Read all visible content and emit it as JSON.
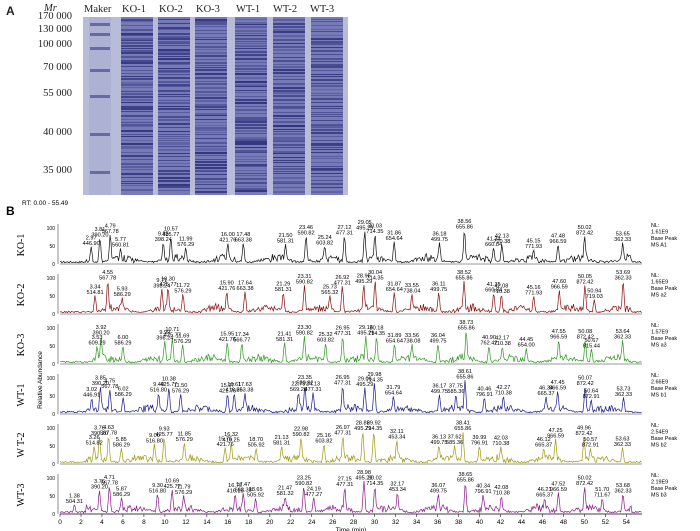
{
  "panel_a": {
    "letter": "A",
    "mw_unit_label": "Mr",
    "mw_markers": [
      "170 000",
      "130 000",
      "100 000",
      "70 000",
      "55 000",
      "40 000",
      "35 000"
    ],
    "lanes": [
      "Maker",
      "KO-1",
      "KO-2",
      "KO-3",
      "WT-1",
      "WT-2",
      "WT-3"
    ]
  },
  "panel_b": {
    "letter": "B",
    "range_label": "RT: 0.00 - 55.49",
    "y_axis_label": "Relative Abundance",
    "x_axis_label": "Time (min)",
    "x_ticks": [
      0,
      2,
      4,
      6,
      8,
      10,
      12,
      14,
      16,
      18,
      20,
      22,
      24,
      26,
      28,
      30,
      32,
      34,
      36,
      38,
      40,
      42,
      44,
      46,
      48,
      50,
      52,
      54
    ],
    "colors": {
      "KO-1": "#111111",
      "KO-2": "#8a1010",
      "KO-3": "#2e9a20",
      "WT-1": "#1a1a8a",
      "WT-2": "#a39a10",
      "WT-3": "#8a1a8a"
    },
    "traces": [
      {
        "label": "KO-1",
        "info": [
          "NL:",
          "1.61E9",
          "Base Peak",
          "MS A1"
        ],
        "peaks": [
          {
            "rt": "3.81",
            "mz": "390.20",
            "h": 0.72
          },
          {
            "rt": "4.79",
            "mz": "567.78",
            "h": 0.82
          },
          {
            "rt": "2.97",
            "mz": "446.90",
            "h": 0.48
          },
          {
            "rt": "5.77",
            "mz": "560.81",
            "h": 0.44
          },
          {
            "rt": "9.85",
            "mz": "398.24",
            "h": 0.6
          },
          {
            "rt": "10.57",
            "mz": "425.77",
            "h": 0.74
          },
          {
            "rt": "11.99",
            "mz": "576.29",
            "h": 0.46
          },
          {
            "rt": "16.00",
            "mz": "421.76",
            "h": 0.58
          },
          {
            "rt": "17.48",
            "mz": "663.38",
            "h": 0.58
          },
          {
            "rt": "21.50",
            "mz": "581.31",
            "h": 0.56
          },
          {
            "rt": "23.46",
            "mz": "590.82",
            "h": 0.78
          },
          {
            "rt": "25.24",
            "mz": "603.82",
            "h": 0.5
          },
          {
            "rt": "27.12",
            "mz": "477.31",
            "h": 0.78
          },
          {
            "rt": "29.05",
            "mz": "495.29",
            "h": 0.92
          },
          {
            "rt": "30.03",
            "mz": "714.35",
            "h": 0.82
          },
          {
            "rt": "31.86",
            "mz": "654.64",
            "h": 0.62
          },
          {
            "rt": "36.18",
            "mz": "499.75",
            "h": 0.6
          },
          {
            "rt": "38.56",
            "mz": "655.86",
            "h": 0.94
          },
          {
            "rt": "41.34",
            "mz": "660.84",
            "h": 0.46
          },
          {
            "rt": "42.13",
            "mz": "710.38",
            "h": 0.54
          },
          {
            "rt": "45.15",
            "mz": "771.93",
            "h": 0.4
          },
          {
            "rt": "47.48",
            "mz": "966.59",
            "h": 0.54
          },
          {
            "rt": "50.02",
            "mz": "872.42",
            "h": 0.78
          },
          {
            "rt": "53.65",
            "mz": "362.33",
            "h": 0.6
          }
        ]
      },
      {
        "label": "KO-2",
        "info": [
          "NL:",
          "1.65E9",
          "Base Peak",
          "MS a2"
        ],
        "peaks": [
          {
            "rt": "4.55",
            "mz": "567.78",
            "h": 0.92
          },
          {
            "rt": "3.34",
            "mz": "514.81",
            "h": 0.52
          },
          {
            "rt": "5.93",
            "mz": "586.29",
            "h": 0.46
          },
          {
            "rt": "9.71",
            "mz": "398.24",
            "h": 0.7
          },
          {
            "rt": "10.30",
            "mz": "425.77",
            "h": 0.74
          },
          {
            "rt": "11.72",
            "mz": "576.29",
            "h": 0.56
          },
          {
            "rt": "15.90",
            "mz": "421.76",
            "h": 0.62
          },
          {
            "rt": "17.64",
            "mz": "663.38",
            "h": 0.62
          },
          {
            "rt": "21.29",
            "mz": "581.31",
            "h": 0.6
          },
          {
            "rt": "23.31",
            "mz": "590.82",
            "h": 0.8
          },
          {
            "rt": "25.73",
            "mz": "565.32",
            "h": 0.52
          },
          {
            "rt": "26.92",
            "mz": "477.31",
            "h": 0.78
          },
          {
            "rt": "28.96",
            "mz": "495.29",
            "h": 0.82
          },
          {
            "rt": "30.04",
            "mz": "714.35",
            "h": 0.92
          },
          {
            "rt": "31.87",
            "mz": "654.64",
            "h": 0.6
          },
          {
            "rt": "33.55",
            "mz": "738.04",
            "h": 0.56
          },
          {
            "rt": "36.11",
            "mz": "499.75",
            "h": 0.6
          },
          {
            "rt": "38.52",
            "mz": "655.86",
            "h": 0.92
          },
          {
            "rt": "41.35",
            "mz": "660.84",
            "h": 0.58
          },
          {
            "rt": "42.08",
            "mz": "710.38",
            "h": 0.54
          },
          {
            "rt": "45.16",
            "mz": "771.93",
            "h": 0.5
          },
          {
            "rt": "47.60",
            "mz": "966.59",
            "h": 0.66
          },
          {
            "rt": "50.05",
            "mz": "872.42",
            "h": 0.8
          },
          {
            "rt": "50.94",
            "mz": "719.03",
            "h": 0.4
          },
          {
            "rt": "53.69",
            "mz": "362.33",
            "h": 0.92
          }
        ]
      },
      {
        "label": "KO-3",
        "info": [
          "NL:",
          "1.57E9",
          "Base Peak",
          "MS a3"
        ],
        "peaks": [
          {
            "rt": "3.92",
            "mz": "390.20",
            "h": 0.78
          },
          {
            "rt": "3.53",
            "mz": "609.29",
            "h": 0.5
          },
          {
            "rt": "6.00",
            "mz": "586.29",
            "h": 0.5
          },
          {
            "rt": "9.99",
            "mz": "398.24",
            "h": 0.64
          },
          {
            "rt": "10.71",
            "mz": "425.77",
            "h": 0.72
          },
          {
            "rt": "11.69",
            "mz": "576.29",
            "h": 0.54
          },
          {
            "rt": "15.95",
            "mz": "421.76",
            "h": 0.6
          },
          {
            "rt": "17.34",
            "mz": "566.77",
            "h": 0.58
          },
          {
            "rt": "21.41",
            "mz": "581.31",
            "h": 0.6
          },
          {
            "rt": "23.30",
            "mz": "590.82",
            "h": 0.78
          },
          {
            "rt": "25.32",
            "mz": "603.82",
            "h": 0.58
          },
          {
            "rt": "26.95",
            "mz": "477.31",
            "h": 0.76
          },
          {
            "rt": "29.16",
            "mz": "495.29",
            "h": 0.78
          },
          {
            "rt": "30.18",
            "mz": "714.35",
            "h": 0.76
          },
          {
            "rt": "31.89",
            "mz": "654.64",
            "h": 0.56
          },
          {
            "rt": "33.56",
            "mz": "738.08",
            "h": 0.56
          },
          {
            "rt": "36.04",
            "mz": "499.75",
            "h": 0.56
          },
          {
            "rt": "38.73",
            "mz": "655.86",
            "h": 0.92
          },
          {
            "rt": "40.90",
            "mz": "762.42",
            "h": 0.5
          },
          {
            "rt": "42.17",
            "mz": "710.38",
            "h": 0.48
          },
          {
            "rt": "44.45",
            "mz": "654.00",
            "h": 0.44
          },
          {
            "rt": "47.55",
            "mz": "966.59",
            "h": 0.66
          },
          {
            "rt": "50.08",
            "mz": "872.42",
            "h": 0.66
          },
          {
            "rt": "50.67",
            "mz": "815.44",
            "h": 0.42
          },
          {
            "rt": "53.64",
            "mz": "362.33",
            "h": 0.66
          }
        ]
      },
      {
        "label": "WT-1",
        "info": [
          "NL:",
          "2.66E9",
          "Base Peak",
          "MS b1"
        ],
        "peaks": [
          {
            "rt": "3.85",
            "mz": "390.20",
            "h": 0.76
          },
          {
            "rt": "3.02",
            "mz": "446.91",
            "h": 0.44
          },
          {
            "rt": "4.75",
            "mz": "567.78",
            "h": 0.68
          },
          {
            "rt": "6.02",
            "mz": "586.29",
            "h": 0.46
          },
          {
            "rt": "9.40",
            "mz": "516.80",
            "h": 0.58
          },
          {
            "rt": "10.38",
            "mz": "425.77",
            "h": 0.74
          },
          {
            "rt": "11.50",
            "mz": "576.29",
            "h": 0.56
          },
          {
            "rt": "15.97",
            "mz": "421.76",
            "h": 0.56
          },
          {
            "rt": "16.61",
            "mz": "416.25",
            "h": 0.58
          },
          {
            "rt": "17.63",
            "mz": "663.38",
            "h": 0.58
          },
          {
            "rt": "22.73",
            "mz": "569.28",
            "h": 0.6
          },
          {
            "rt": "23.35",
            "mz": "590.82",
            "h": 0.78
          },
          {
            "rt": "24.13",
            "mz": "477.31",
            "h": 0.6
          },
          {
            "rt": "26.95",
            "mz": "477.31",
            "h": 0.78
          },
          {
            "rt": "29.06",
            "mz": "495.29",
            "h": 0.74
          },
          {
            "rt": "29.98",
            "mz": "714.35",
            "h": 0.86
          },
          {
            "rt": "31.79",
            "mz": "654.64",
            "h": 0.5
          },
          {
            "rt": "36.17",
            "mz": "499.75",
            "h": 0.54
          },
          {
            "rt": "37.75",
            "mz": "585.36",
            "h": 0.54
          },
          {
            "rt": "38.61",
            "mz": "655.86",
            "h": 0.94
          },
          {
            "rt": "40.46",
            "mz": "796.91",
            "h": 0.46
          },
          {
            "rt": "42.27",
            "mz": "710.38",
            "h": 0.5
          },
          {
            "rt": "46.34",
            "mz": "665.37",
            "h": 0.48
          },
          {
            "rt": "47.45",
            "mz": "966.59",
            "h": 0.64
          },
          {
            "rt": "50.07",
            "mz": "872.42",
            "h": 0.76
          },
          {
            "rt": "50.64",
            "mz": "872.91",
            "h": 0.4
          },
          {
            "rt": "53.73",
            "mz": "362.33",
            "h": 0.46
          }
        ]
      },
      {
        "label": "W T-2",
        "info": [
          "NL:",
          "2.54E9",
          "Base Peak",
          "MS b2"
        ],
        "peaks": [
          {
            "rt": "3.76",
            "mz": "390.20",
            "h": 0.76
          },
          {
            "rt": "4.63",
            "mz": "567.78",
            "h": 0.78
          },
          {
            "rt": "3.26",
            "mz": "514.82",
            "h": 0.5
          },
          {
            "rt": "5.85",
            "mz": "586.29",
            "h": 0.44
          },
          {
            "rt": "9.00",
            "mz": "516.80",
            "h": 0.56
          },
          {
            "rt": "9.93",
            "mz": "425.77",
            "h": 0.74
          },
          {
            "rt": "11.85",
            "mz": "576.29",
            "h": 0.6
          },
          {
            "rt": "15.75",
            "mz": "421.76",
            "h": 0.46
          },
          {
            "rt": "16.32",
            "mz": "416.25",
            "h": 0.58
          },
          {
            "rt": "18.70",
            "mz": "505.92",
            "h": 0.44
          },
          {
            "rt": "21.13",
            "mz": "581.31",
            "h": 0.5
          },
          {
            "rt": "22.98",
            "mz": "590.82",
            "h": 0.74
          },
          {
            "rt": "25.16",
            "mz": "603.82",
            "h": 0.56
          },
          {
            "rt": "26.97",
            "mz": "477.31",
            "h": 0.78
          },
          {
            "rt": "28.86",
            "mz": "495.29",
            "h": 0.9
          },
          {
            "rt": "29.92",
            "mz": "714.35",
            "h": 0.9
          },
          {
            "rt": "32.11",
            "mz": "453.34",
            "h": 0.66
          },
          {
            "rt": "36.13",
            "mz": "499.75",
            "h": 0.52
          },
          {
            "rt": "37.62",
            "mz": "585.36",
            "h": 0.52
          },
          {
            "rt": "38.41",
            "mz": "655.86",
            "h": 0.9
          },
          {
            "rt": "39.99",
            "mz": "796.91",
            "h": 0.5
          },
          {
            "rt": "42.03",
            "mz": "710.38",
            "h": 0.48
          },
          {
            "rt": "46.12",
            "mz": "665.37",
            "h": 0.44
          },
          {
            "rt": "47.25",
            "mz": "966.59",
            "h": 0.7
          },
          {
            "rt": "49.96",
            "mz": "872.42",
            "h": 0.76
          },
          {
            "rt": "50.57",
            "mz": "872.91",
            "h": 0.44
          },
          {
            "rt": "53.63",
            "mz": "362.33",
            "h": 0.46
          }
        ]
      },
      {
        "label": "WT-3",
        "info": [
          "NL:",
          "2.19E9",
          "Base Peak",
          "MS b3"
        ],
        "peaks": [
          {
            "rt": "3.76",
            "mz": "390.20",
            "h": 0.66
          },
          {
            "rt": "4.71",
            "mz": "567.78",
            "h": 0.78
          },
          {
            "rt": "1.38",
            "mz": "504.31",
            "h": 0.26
          },
          {
            "rt": "5.87",
            "mz": "586.29",
            "h": 0.46
          },
          {
            "rt": "9.30",
            "mz": "516.80",
            "h": 0.56
          },
          {
            "rt": "10.69",
            "mz": "425.77",
            "h": 0.68
          },
          {
            "rt": "11.79",
            "mz": "576.29",
            "h": 0.52
          },
          {
            "rt": "16.70",
            "mz": "416.25",
            "h": 0.56
          },
          {
            "rt": "17.47",
            "mz": "663.38",
            "h": 0.58
          },
          {
            "rt": "18.65",
            "mz": "505.92",
            "h": 0.44
          },
          {
            "rt": "21.47",
            "mz": "581.32",
            "h": 0.48
          },
          {
            "rt": "23.25",
            "mz": "590.82",
            "h": 0.76
          },
          {
            "rt": "24.19",
            "mz": "477.27",
            "h": 0.46
          },
          {
            "rt": "27.15",
            "mz": "477.31",
            "h": 0.74
          },
          {
            "rt": "28.98",
            "mz": "495.29",
            "h": 0.92
          },
          {
            "rt": "30.02",
            "mz": "714.35",
            "h": 0.76
          },
          {
            "rt": "32.17",
            "mz": "453.34",
            "h": 0.6
          },
          {
            "rt": "36.07",
            "mz": "499.75",
            "h": 0.56
          },
          {
            "rt": "38.65",
            "mz": "655.86",
            "h": 0.86
          },
          {
            "rt": "40.34",
            "mz": "796.91",
            "h": 0.54
          },
          {
            "rt": "42.08",
            "mz": "710.38",
            "h": 0.5
          },
          {
            "rt": "46.21",
            "mz": "665.37",
            "h": 0.44
          },
          {
            "rt": "47.52",
            "mz": "966.59",
            "h": 0.6
          },
          {
            "rt": "50.02",
            "mz": "872.42",
            "h": 0.76
          },
          {
            "rt": "51.70",
            "mz": "711.67",
            "h": 0.44
          },
          {
            "rt": "53.68",
            "mz": "362.33",
            "h": 0.56
          }
        ]
      }
    ]
  }
}
